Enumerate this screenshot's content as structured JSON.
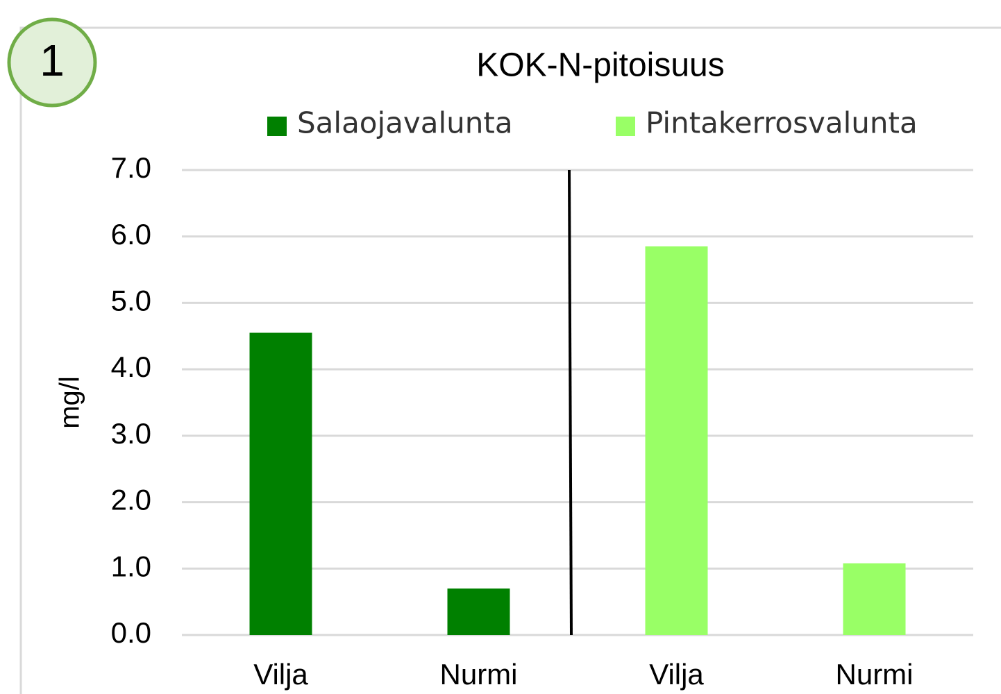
{
  "chart_data": {
    "type": "bar",
    "badge": "1",
    "title": "KOK-N-pitoisuus",
    "y_label": "mg/l",
    "categories": [
      "Vilja",
      "Nurmi",
      "Vilja",
      "Nurmi"
    ],
    "series": [
      {
        "name": "Salaojavalunta",
        "color": "#008000",
        "values": [
          4.55,
          0.7,
          null,
          null
        ]
      },
      {
        "name": "Pintakerrosvalunta",
        "color": "#99ff66",
        "values": [
          null,
          null,
          5.85,
          1.08
        ]
      }
    ],
    "ylim": [
      0,
      7
    ],
    "yticks": [
      {
        "value": 0,
        "label": "0.0"
      },
      {
        "value": 1,
        "label": "1.0"
      },
      {
        "value": 2,
        "label": "2.0"
      },
      {
        "value": 3,
        "label": "3.0"
      },
      {
        "value": 4,
        "label": "4.0"
      },
      {
        "value": 5,
        "label": "5.0"
      },
      {
        "value": 6,
        "label": "6.0"
      },
      {
        "value": 7,
        "label": "7.0"
      }
    ],
    "grid": true
  }
}
